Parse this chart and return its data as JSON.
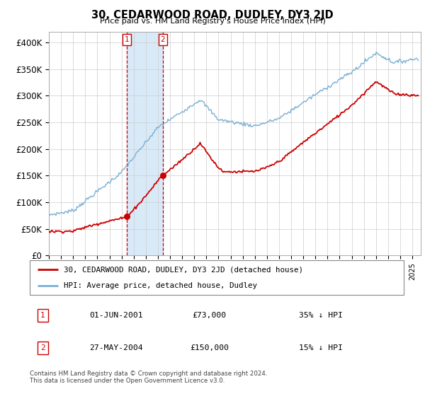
{
  "title": "30, CEDARWOOD ROAD, DUDLEY, DY3 2JD",
  "subtitle": "Price paid vs. HM Land Registry's House Price Index (HPI)",
  "ylim": [
    0,
    420000
  ],
  "xlim_start": 1995.0,
  "xlim_end": 2025.7,
  "transaction1": {
    "date_num": 2001.42,
    "price": 73000,
    "label": "1",
    "date_str": "01-JUN-2001",
    "pct": "35%",
    "dir": "↓"
  },
  "transaction2": {
    "date_num": 2004.4,
    "price": 150000,
    "label": "2",
    "date_str": "27-MAY-2004",
    "pct": "15%",
    "dir": "↓"
  },
  "shade_x1": 2001.42,
  "shade_x2": 2004.4,
  "red_color": "#cc0000",
  "blue_color": "#7aafd4",
  "shade_color": "#d8eaf8",
  "legend_label_red": "30, CEDARWOOD ROAD, DUDLEY, DY3 2JD (detached house)",
  "legend_label_blue": "HPI: Average price, detached house, Dudley",
  "footnote": "Contains HM Land Registry data © Crown copyright and database right 2024.\nThis data is licensed under the Open Government Licence v3.0.",
  "table_rows": [
    {
      "num": "1",
      "date": "01-JUN-2001",
      "price": "£73,000",
      "pct": "35% ↓ HPI"
    },
    {
      "num": "2",
      "date": "27-MAY-2004",
      "price": "£150,000",
      "pct": "15% ↓ HPI"
    }
  ]
}
